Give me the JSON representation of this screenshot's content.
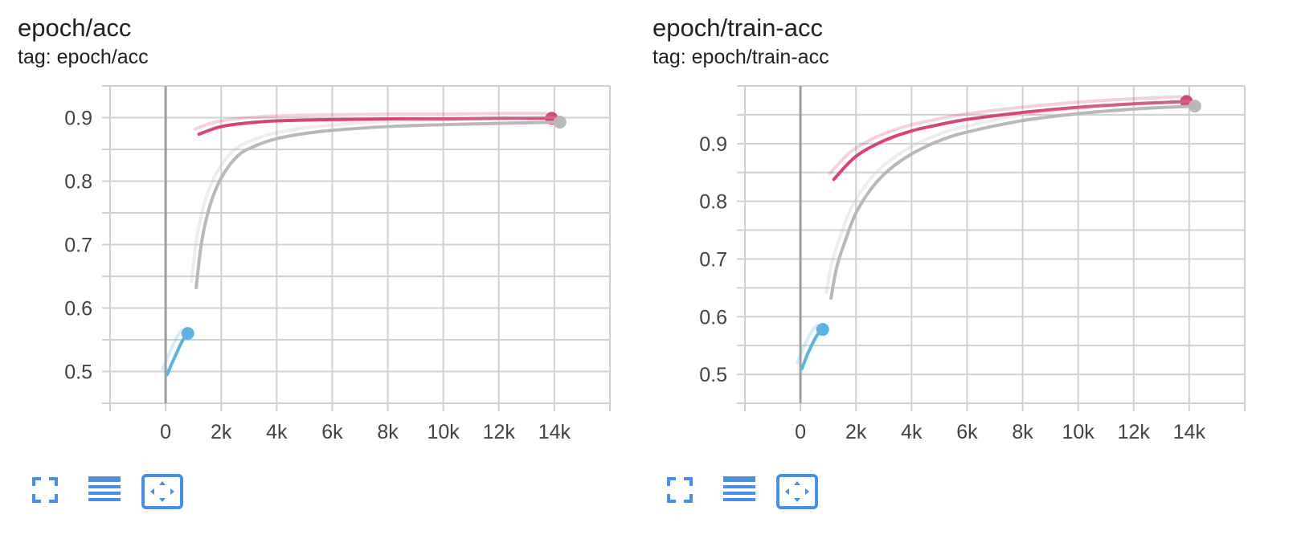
{
  "colors": {
    "grid": "#d0d0d0",
    "zero_axis": "#9e9e9e",
    "accent_icon": "#4a8fe7",
    "series_blue": "#5cb3e0",
    "series_pink": "#d6457a",
    "series_gray": "#b8b8b8"
  },
  "icons": [
    "fullscreen-icon",
    "data-table-icon",
    "fit-domain-icon"
  ],
  "chart_data": [
    {
      "type": "line",
      "title": "epoch/acc",
      "subtitle": "tag: epoch/acc",
      "xlim": [
        -2000,
        16000
      ],
      "ylim": [
        0.45,
        0.95
      ],
      "x_ticks": [
        0,
        2000,
        4000,
        6000,
        8000,
        10000,
        12000,
        14000
      ],
      "x_tick_labels": [
        "0",
        "2k",
        "4k",
        "6k",
        "8k",
        "10k",
        "12k",
        "14k"
      ],
      "y_ticks": [
        0.5,
        0.6,
        0.7,
        0.8,
        0.9
      ],
      "y_tick_labels": [
        "0.5",
        "0.6",
        "0.7",
        "0.8",
        "0.9"
      ],
      "grid": true,
      "series": [
        {
          "color": "#5cb3e0",
          "end_marker": true,
          "x": [
            50,
            300,
            600,
            800
          ],
          "y": [
            0.495,
            0.52,
            0.548,
            0.56
          ]
        },
        {
          "color": "#d6457a",
          "end_marker": true,
          "x": [
            1200,
            2000,
            3000,
            4000,
            6000,
            8000,
            10000,
            12000,
            13900
          ],
          "y": [
            0.874,
            0.886,
            0.892,
            0.895,
            0.897,
            0.898,
            0.898,
            0.899,
            0.899
          ]
        },
        {
          "color": "#b8b8b8",
          "end_marker": true,
          "x": [
            1100,
            1300,
            1600,
            2000,
            2600,
            3200,
            4000,
            5000,
            6000,
            8000,
            10000,
            12000,
            14200
          ],
          "y": [
            0.632,
            0.705,
            0.762,
            0.805,
            0.84,
            0.855,
            0.867,
            0.875,
            0.88,
            0.886,
            0.889,
            0.891,
            0.893
          ]
        }
      ]
    },
    {
      "type": "line",
      "title": "epoch/train-acc",
      "subtitle": "tag: epoch/train-acc",
      "xlim": [
        -2000,
        16000
      ],
      "ylim": [
        0.45,
        1.0
      ],
      "x_ticks": [
        0,
        2000,
        4000,
        6000,
        8000,
        10000,
        12000,
        14000
      ],
      "x_tick_labels": [
        "0",
        "2k",
        "4k",
        "6k",
        "8k",
        "10k",
        "12k",
        "14k"
      ],
      "y_ticks": [
        0.5,
        0.6,
        0.7,
        0.8,
        0.9
      ],
      "y_tick_labels": [
        "0.5",
        "0.6",
        "0.7",
        "0.8",
        "0.9"
      ],
      "grid": true,
      "series": [
        {
          "color": "#5cb3e0",
          "end_marker": true,
          "x": [
            50,
            300,
            600,
            800
          ],
          "y": [
            0.51,
            0.54,
            0.568,
            0.578
          ]
        },
        {
          "color": "#d6457a",
          "end_marker": true,
          "x": [
            1200,
            2000,
            3000,
            4000,
            5000,
            6000,
            8000,
            10000,
            12000,
            13900
          ],
          "y": [
            0.838,
            0.878,
            0.905,
            0.922,
            0.933,
            0.942,
            0.954,
            0.963,
            0.969,
            0.973
          ]
        },
        {
          "color": "#b8b8b8",
          "end_marker": true,
          "x": [
            1100,
            1300,
            1600,
            2000,
            2600,
            3200,
            4000,
            5000,
            6000,
            8000,
            10000,
            12000,
            14200
          ],
          "y": [
            0.632,
            0.685,
            0.73,
            0.78,
            0.825,
            0.855,
            0.882,
            0.905,
            0.92,
            0.94,
            0.952,
            0.96,
            0.965
          ]
        }
      ]
    }
  ]
}
